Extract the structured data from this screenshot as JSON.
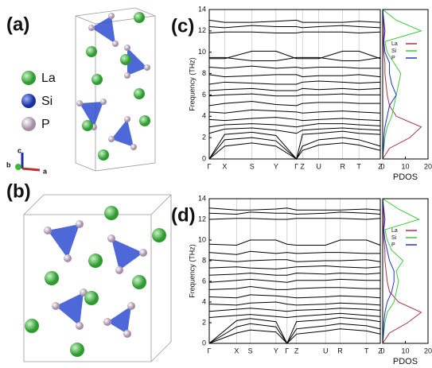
{
  "structures": {
    "panels": [
      "(a)",
      "(b)"
    ],
    "legend": [
      {
        "name": "La",
        "color": "#3db83d"
      },
      {
        "name": "Si",
        "color": "#2846c8"
      },
      {
        "name": "P",
        "color": "#c9b3c6"
      }
    ],
    "axes": [
      "c",
      "b",
      "a"
    ]
  },
  "chart_data": [
    {
      "type": "band",
      "label": "(c)",
      "ylabel": "Frequency (THz)",
      "ylim": [
        0,
        14
      ],
      "yticks": [
        0,
        2,
        4,
        6,
        8,
        10,
        12,
        14
      ],
      "kpoints": [
        "Γ",
        "X",
        "S",
        "Y",
        "Γ",
        "Z",
        "U",
        "R",
        "T",
        "Z"
      ],
      "bands": [
        [
          0,
          1.2,
          1.5,
          1.2,
          0,
          0.8,
          1.3,
          1.5,
          1.3,
          0.8
        ],
        [
          0,
          1.8,
          2,
          1.7,
          0,
          1.2,
          1.8,
          2,
          1.8,
          1.2
        ],
        [
          0,
          2.3,
          2.5,
          2.2,
          0,
          2.3,
          2.4,
          2.6,
          2.4,
          2.3
        ],
        [
          2.4,
          2.8,
          2.9,
          2.7,
          2.4,
          2.7,
          2.8,
          2.9,
          2.8,
          2.7
        ],
        [
          3,
          3.2,
          3.3,
          3.2,
          3,
          3.1,
          3.3,
          3.3,
          3.2,
          3.1
        ],
        [
          3.7,
          3.6,
          3.8,
          3.9,
          3.7,
          3.6,
          3.7,
          3.8,
          3.7,
          3.6
        ],
        [
          4.4,
          4.3,
          4.6,
          4.5,
          4.4,
          4.3,
          4.4,
          4.5,
          4.4,
          4.3
        ],
        [
          5,
          5.2,
          5.4,
          5.1,
          5,
          5.2,
          5.3,
          5.3,
          5.2,
          5.2
        ],
        [
          5.9,
          6,
          6.1,
          5.9,
          5.9,
          6,
          6,
          6.1,
          6,
          6
        ],
        [
          6.4,
          6.5,
          6.6,
          6.4,
          6.4,
          6.6,
          6.5,
          6.6,
          6.5,
          6.6
        ],
        [
          7,
          7.2,
          7.1,
          7,
          7,
          7.2,
          7.3,
          7.2,
          7.1,
          7.2
        ],
        [
          7.9,
          7.7,
          7.8,
          7.9,
          7.9,
          7.7,
          7.8,
          7.8,
          7.9,
          7.7
        ],
        [
          8.6,
          8.5,
          8.7,
          8.5,
          8.6,
          8.5,
          8.6,
          8.6,
          8.5,
          8.5
        ],
        [
          9.4,
          9.4,
          10.1,
          10.1,
          9.4,
          9.4,
          9.4,
          10.1,
          10.1,
          9.4
        ],
        [
          9.5,
          9.5,
          9.2,
          9.2,
          9.5,
          9.5,
          9.5,
          9.2,
          9.2,
          9.5
        ],
        [
          11.8,
          11.9,
          11.9,
          11.8,
          11.8,
          11.9,
          11.9,
          11.9,
          11.8,
          11.9
        ],
        [
          12.4,
          12.3,
          12.5,
          12.4,
          12.4,
          12.3,
          12.4,
          12.5,
          12.4,
          12.3
        ],
        [
          13,
          12.8,
          12.8,
          12.9,
          13,
          12.8,
          12.8,
          12.8,
          12.9,
          12.8
        ]
      ],
      "pdos": {
        "xlabel": "PDOS",
        "xlim": [
          0,
          20
        ],
        "xticks": [
          0,
          10,
          20
        ],
        "freq": [
          0,
          1,
          2,
          3,
          4,
          5,
          6,
          7,
          8,
          9,
          10,
          11,
          12,
          13,
          14
        ],
        "series": [
          {
            "name": "La",
            "color": "#b03048",
            "values": [
              0,
              3,
              12,
              17,
              6,
              3,
              2,
              1.5,
              1,
              1,
              0.5,
              0.3,
              0.5,
              0.3,
              0
            ]
          },
          {
            "name": "Si",
            "color": "#3ccc3c",
            "values": [
              0,
              0.5,
              1,
              2,
              4,
              5,
              6,
              7,
              8,
              5,
              2,
              1,
              17,
              6,
              0
            ]
          },
          {
            "name": "P",
            "color": "#2233cc",
            "values": [
              0,
              0.3,
              0.5,
              1,
              2,
              3,
              6,
              4,
              3,
              3,
              1,
              0.5,
              1,
              0.5,
              0
            ]
          }
        ]
      }
    },
    {
      "type": "band",
      "label": "(d)",
      "ylabel": "Frequency (THz)",
      "ylim": [
        0,
        14
      ],
      "yticks": [
        0,
        2,
        4,
        6,
        8,
        10,
        12,
        14
      ],
      "kpoints": [
        "Γ",
        "X",
        "S",
        "Y",
        "Γ",
        "Z",
        "U",
        "R",
        "T",
        "Z"
      ],
      "bands": [
        [
          0,
          1,
          1.3,
          1.1,
          0,
          0.9,
          1.2,
          1.4,
          1.2,
          0.9
        ],
        [
          0,
          1.6,
          1.9,
          1.6,
          0,
          1.4,
          1.7,
          1.9,
          1.7,
          1.4
        ],
        [
          0,
          2.2,
          2.4,
          2.1,
          0,
          2.1,
          2.3,
          2.5,
          2.3,
          2.1
        ],
        [
          2.5,
          2.7,
          2.8,
          2.6,
          2.5,
          2.6,
          2.8,
          2.9,
          2.7,
          2.6
        ],
        [
          3.1,
          3.3,
          3.4,
          3.2,
          3.1,
          3.2,
          3.3,
          3.4,
          3.3,
          3.2
        ],
        [
          3.8,
          3.7,
          3.9,
          4,
          3.8,
          3.7,
          3.8,
          3.9,
          3.8,
          3.7
        ],
        [
          4.5,
          4.4,
          4.7,
          4.6,
          4.5,
          4.4,
          4.5,
          4.6,
          4.5,
          4.4
        ],
        [
          5.2,
          5.3,
          5.5,
          5.2,
          5.2,
          5.3,
          5.4,
          5.4,
          5.3,
          5.3
        ],
        [
          5.9,
          6.1,
          6.2,
          6,
          5.9,
          6.1,
          6.1,
          6.2,
          6.1,
          6.1
        ],
        [
          6.6,
          6.7,
          6.8,
          6.6,
          6.6,
          6.8,
          6.7,
          6.8,
          6.7,
          6.8
        ],
        [
          7.3,
          7.4,
          7.3,
          7.2,
          7.3,
          7.4,
          7.5,
          7.4,
          7.3,
          7.4
        ],
        [
          8.1,
          7.9,
          8,
          8.1,
          8.1,
          7.9,
          8,
          8,
          8.1,
          7.9
        ],
        [
          8.8,
          8.6,
          8.9,
          8.7,
          8.8,
          8.7,
          8.8,
          8.8,
          8.7,
          8.7
        ],
        [
          9.6,
          9.5,
          10,
          10,
          9.6,
          9.5,
          9.5,
          10,
          10,
          9.5
        ],
        [
          12,
          12.1,
          12.1,
          12,
          12,
          12.1,
          12.1,
          12.1,
          12,
          12.1
        ],
        [
          12.6,
          12.5,
          12.7,
          12.6,
          12.6,
          12.5,
          12.6,
          12.7,
          12.6,
          12.5
        ],
        [
          13.1,
          12.9,
          12.9,
          13,
          13.1,
          12.9,
          12.9,
          12.9,
          13,
          12.9
        ]
      ],
      "pdos": {
        "xlabel": "PDOS",
        "xlim": [
          0,
          20
        ],
        "xticks": [
          0,
          10,
          20
        ],
        "freq": [
          0,
          1,
          2,
          3,
          4,
          5,
          6,
          7,
          8,
          9,
          10,
          11,
          12,
          13,
          14
        ],
        "series": [
          {
            "name": "La",
            "color": "#b03048",
            "values": [
              0,
              3,
              11,
              17,
              7,
              3,
              2,
              1.5,
              1,
              1,
              0.5,
              0.3,
              0.5,
              0.3,
              0
            ]
          },
          {
            "name": "Si",
            "color": "#3ccc3c",
            "values": [
              0,
              0.5,
              1,
              2,
              5,
              6,
              7,
              6,
              9,
              4,
              2,
              1,
              16,
              7,
              0
            ]
          },
          {
            "name": "P",
            "color": "#2233cc",
            "values": [
              0,
              0.3,
              0.5,
              1,
              2,
              4,
              5,
              5,
              3,
              2,
              1,
              0.5,
              1,
              0.5,
              0
            ]
          }
        ]
      }
    }
  ]
}
